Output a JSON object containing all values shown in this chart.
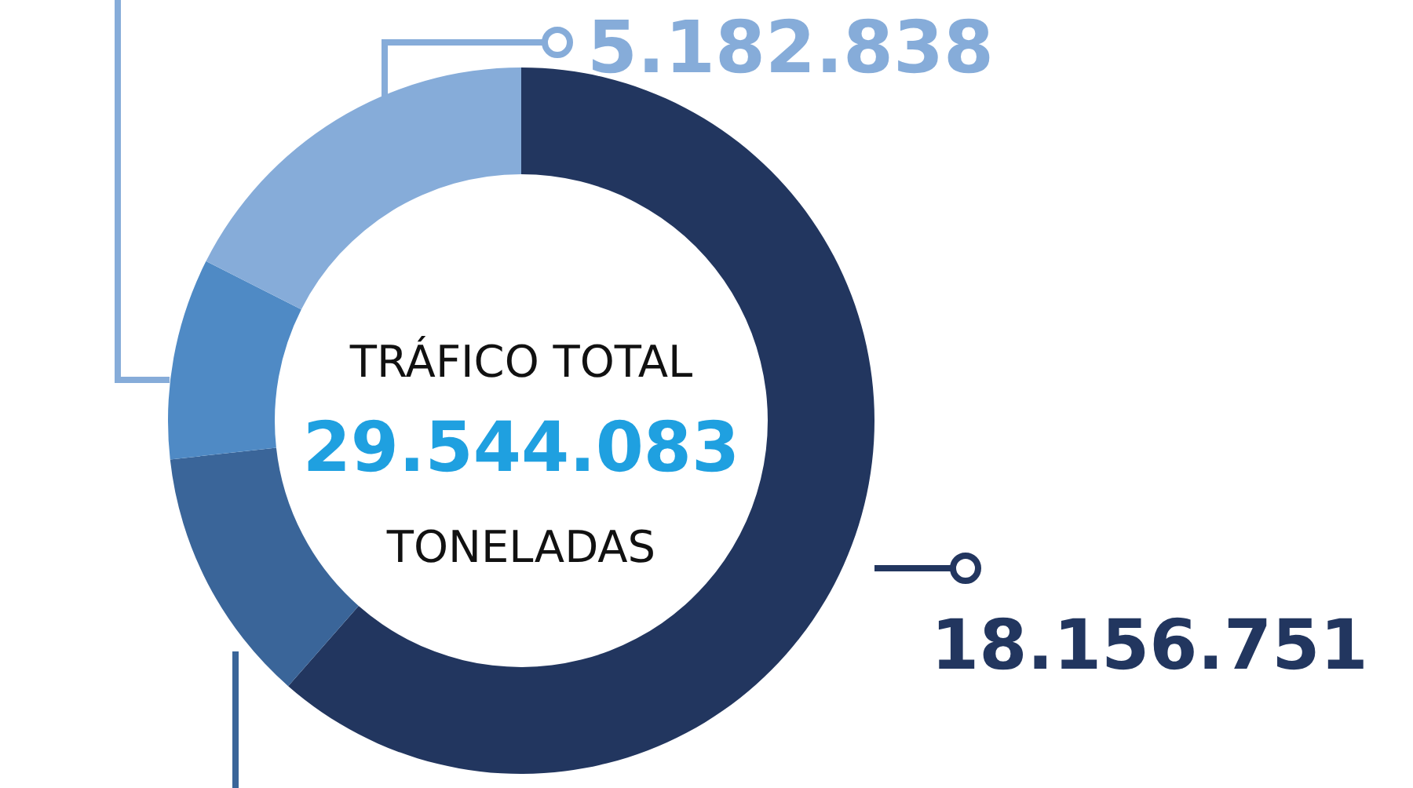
{
  "chart_data": {
    "type": "donut",
    "categories": [
      null,
      null,
      null,
      null
    ],
    "values": [
      18156751,
      3480000,
      2720000,
      5182838
    ],
    "colors": [
      "#22365f",
      "#3a6599",
      "#4f8ac5",
      "#86acd9"
    ],
    "value_labels": [
      "18.156.751",
      null,
      null,
      "5.182.838"
    ],
    "annotations": [
      "TRÁFICO TOTAL",
      "29.544.083",
      "TONELADAS"
    ]
  }
}
